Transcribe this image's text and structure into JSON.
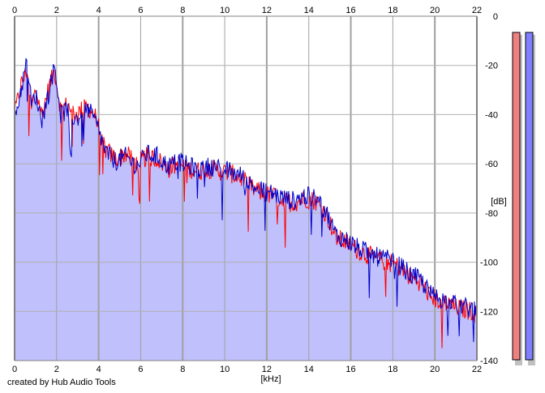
{
  "footer": {
    "credit": "created by Hub Audio Tools"
  },
  "chart_data": {
    "type": "area",
    "xlabel": "[kHz]",
    "ylabel": "[dB]",
    "xlim": [
      0,
      22
    ],
    "ylim": [
      -140,
      0
    ],
    "x_ticks": [
      0,
      2,
      4,
      6,
      8,
      10,
      12,
      14,
      16,
      18,
      20,
      22
    ],
    "y_ticks": [
      0,
      -20,
      -40,
      -60,
      -80,
      -100,
      -120,
      -140
    ],
    "grid": true,
    "fill_color": "#c0c0fc",
    "series": [
      {
        "color": "#ff0000",
        "points": [
          [
            0,
            -40
          ],
          [
            0.3,
            -28
          ],
          [
            0.6,
            -22
          ],
          [
            0.8,
            -38
          ],
          [
            1.0,
            -30
          ],
          [
            1.3,
            -40
          ],
          [
            1.6,
            -30
          ],
          [
            1.9,
            -22
          ],
          [
            2.2,
            -38
          ],
          [
            2.5,
            -36
          ],
          [
            2.9,
            -40
          ],
          [
            3.2,
            -38
          ],
          [
            3.5,
            -37
          ],
          [
            3.8,
            -40
          ],
          [
            4.0,
            -45
          ],
          [
            4.3,
            -54
          ],
          [
            4.8,
            -58
          ],
          [
            5.3,
            -56
          ],
          [
            5.8,
            -60
          ],
          [
            6.3,
            -57
          ],
          [
            6.8,
            -58
          ],
          [
            7.3,
            -62
          ],
          [
            7.8,
            -60
          ],
          [
            8.3,
            -62
          ],
          [
            8.8,
            -63
          ],
          [
            9.3,
            -62
          ],
          [
            9.8,
            -63
          ],
          [
            10.3,
            -64
          ],
          [
            10.8,
            -66
          ],
          [
            11.3,
            -70
          ],
          [
            11.8,
            -72
          ],
          [
            12.3,
            -73
          ],
          [
            12.8,
            -75
          ],
          [
            13.3,
            -76
          ],
          [
            13.8,
            -74
          ],
          [
            14.3,
            -75
          ],
          [
            14.8,
            -80
          ],
          [
            15.3,
            -90
          ],
          [
            15.8,
            -92
          ],
          [
            16.3,
            -95
          ],
          [
            16.8,
            -97
          ],
          [
            17.3,
            -99
          ],
          [
            17.8,
            -100
          ],
          [
            18.3,
            -102
          ],
          [
            18.8,
            -106
          ],
          [
            19.3,
            -108
          ],
          [
            19.8,
            -114
          ],
          [
            20.3,
            -116
          ],
          [
            20.8,
            -118
          ],
          [
            21.3,
            -119
          ],
          [
            21.8,
            -120
          ],
          [
            22,
            -122
          ]
        ]
      },
      {
        "color": "#0000c8",
        "points": [
          [
            0,
            -42
          ],
          [
            0.3,
            -30
          ],
          [
            0.6,
            -18
          ],
          [
            0.8,
            -36
          ],
          [
            1.0,
            -32
          ],
          [
            1.3,
            -42
          ],
          [
            1.6,
            -32
          ],
          [
            1.9,
            -20
          ],
          [
            2.2,
            -40
          ],
          [
            2.5,
            -38
          ],
          [
            2.9,
            -42
          ],
          [
            3.2,
            -40
          ],
          [
            3.5,
            -38
          ],
          [
            3.8,
            -42
          ],
          [
            4.0,
            -46
          ],
          [
            4.3,
            -55
          ],
          [
            4.8,
            -59
          ],
          [
            5.3,
            -57
          ],
          [
            5.8,
            -61
          ],
          [
            6.3,
            -56
          ],
          [
            6.8,
            -57
          ],
          [
            7.3,
            -61
          ],
          [
            7.8,
            -59
          ],
          [
            8.3,
            -61
          ],
          [
            8.8,
            -62
          ],
          [
            9.3,
            -61
          ],
          [
            9.8,
            -62
          ],
          [
            10.3,
            -63
          ],
          [
            10.8,
            -65
          ],
          [
            11.3,
            -69
          ],
          [
            11.8,
            -71
          ],
          [
            12.3,
            -72
          ],
          [
            12.8,
            -74
          ],
          [
            13.3,
            -75
          ],
          [
            13.8,
            -73
          ],
          [
            14.3,
            -74
          ],
          [
            14.8,
            -79
          ],
          [
            15.3,
            -89
          ],
          [
            15.8,
            -91
          ],
          [
            16.3,
            -94
          ],
          [
            16.8,
            -96
          ],
          [
            17.3,
            -98
          ],
          [
            17.8,
            -99
          ],
          [
            18.3,
            -101
          ],
          [
            18.8,
            -105
          ],
          [
            19.3,
            -107
          ],
          [
            19.8,
            -113
          ],
          [
            20.3,
            -115
          ],
          [
            20.8,
            -117
          ],
          [
            21.3,
            -118
          ],
          [
            21.8,
            -119
          ],
          [
            22,
            -121
          ]
        ]
      }
    ],
    "level_meters": [
      {
        "color": "#f08080"
      },
      {
        "color": "#8080ff"
      }
    ]
  }
}
